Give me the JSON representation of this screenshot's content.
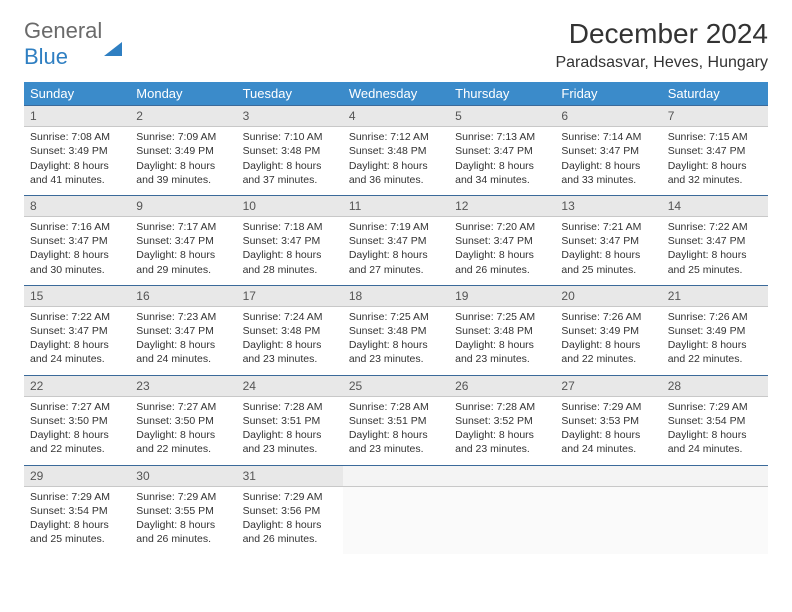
{
  "logo": {
    "text1": "General",
    "text2": "Blue"
  },
  "title": "December 2024",
  "location": "Paradsasvar, Heves, Hungary",
  "colors": {
    "header_bg": "#3b8bca",
    "header_text": "#ffffff",
    "daynum_bg": "#e8e8e8",
    "rule": "#3b6a9a",
    "logo_gray": "#6a6a6a",
    "logo_blue": "#2f7fc2"
  },
  "day_headers": [
    "Sunday",
    "Monday",
    "Tuesday",
    "Wednesday",
    "Thursday",
    "Friday",
    "Saturday"
  ],
  "weeks": [
    [
      {
        "n": "1",
        "sr": "7:08 AM",
        "ss": "3:49 PM",
        "dl": "8 hours and 41 minutes."
      },
      {
        "n": "2",
        "sr": "7:09 AM",
        "ss": "3:49 PM",
        "dl": "8 hours and 39 minutes."
      },
      {
        "n": "3",
        "sr": "7:10 AM",
        "ss": "3:48 PM",
        "dl": "8 hours and 37 minutes."
      },
      {
        "n": "4",
        "sr": "7:12 AM",
        "ss": "3:48 PM",
        "dl": "8 hours and 36 minutes."
      },
      {
        "n": "5",
        "sr": "7:13 AM",
        "ss": "3:47 PM",
        "dl": "8 hours and 34 minutes."
      },
      {
        "n": "6",
        "sr": "7:14 AM",
        "ss": "3:47 PM",
        "dl": "8 hours and 33 minutes."
      },
      {
        "n": "7",
        "sr": "7:15 AM",
        "ss": "3:47 PM",
        "dl": "8 hours and 32 minutes."
      }
    ],
    [
      {
        "n": "8",
        "sr": "7:16 AM",
        "ss": "3:47 PM",
        "dl": "8 hours and 30 minutes."
      },
      {
        "n": "9",
        "sr": "7:17 AM",
        "ss": "3:47 PM",
        "dl": "8 hours and 29 minutes."
      },
      {
        "n": "10",
        "sr": "7:18 AM",
        "ss": "3:47 PM",
        "dl": "8 hours and 28 minutes."
      },
      {
        "n": "11",
        "sr": "7:19 AM",
        "ss": "3:47 PM",
        "dl": "8 hours and 27 minutes."
      },
      {
        "n": "12",
        "sr": "7:20 AM",
        "ss": "3:47 PM",
        "dl": "8 hours and 26 minutes."
      },
      {
        "n": "13",
        "sr": "7:21 AM",
        "ss": "3:47 PM",
        "dl": "8 hours and 25 minutes."
      },
      {
        "n": "14",
        "sr": "7:22 AM",
        "ss": "3:47 PM",
        "dl": "8 hours and 25 minutes."
      }
    ],
    [
      {
        "n": "15",
        "sr": "7:22 AM",
        "ss": "3:47 PM",
        "dl": "8 hours and 24 minutes."
      },
      {
        "n": "16",
        "sr": "7:23 AM",
        "ss": "3:47 PM",
        "dl": "8 hours and 24 minutes."
      },
      {
        "n": "17",
        "sr": "7:24 AM",
        "ss": "3:48 PM",
        "dl": "8 hours and 23 minutes."
      },
      {
        "n": "18",
        "sr": "7:25 AM",
        "ss": "3:48 PM",
        "dl": "8 hours and 23 minutes."
      },
      {
        "n": "19",
        "sr": "7:25 AM",
        "ss": "3:48 PM",
        "dl": "8 hours and 23 minutes."
      },
      {
        "n": "20",
        "sr": "7:26 AM",
        "ss": "3:49 PM",
        "dl": "8 hours and 22 minutes."
      },
      {
        "n": "21",
        "sr": "7:26 AM",
        "ss": "3:49 PM",
        "dl": "8 hours and 22 minutes."
      }
    ],
    [
      {
        "n": "22",
        "sr": "7:27 AM",
        "ss": "3:50 PM",
        "dl": "8 hours and 22 minutes."
      },
      {
        "n": "23",
        "sr": "7:27 AM",
        "ss": "3:50 PM",
        "dl": "8 hours and 22 minutes."
      },
      {
        "n": "24",
        "sr": "7:28 AM",
        "ss": "3:51 PM",
        "dl": "8 hours and 23 minutes."
      },
      {
        "n": "25",
        "sr": "7:28 AM",
        "ss": "3:51 PM",
        "dl": "8 hours and 23 minutes."
      },
      {
        "n": "26",
        "sr": "7:28 AM",
        "ss": "3:52 PM",
        "dl": "8 hours and 23 minutes."
      },
      {
        "n": "27",
        "sr": "7:29 AM",
        "ss": "3:53 PM",
        "dl": "8 hours and 24 minutes."
      },
      {
        "n": "28",
        "sr": "7:29 AM",
        "ss": "3:54 PM",
        "dl": "8 hours and 24 minutes."
      }
    ],
    [
      {
        "n": "29",
        "sr": "7:29 AM",
        "ss": "3:54 PM",
        "dl": "8 hours and 25 minutes."
      },
      {
        "n": "30",
        "sr": "7:29 AM",
        "ss": "3:55 PM",
        "dl": "8 hours and 26 minutes."
      },
      {
        "n": "31",
        "sr": "7:29 AM",
        "ss": "3:56 PM",
        "dl": "8 hours and 26 minutes."
      },
      null,
      null,
      null,
      null
    ]
  ],
  "labels": {
    "sunrise": "Sunrise: ",
    "sunset": "Sunset: ",
    "daylight": "Daylight: "
  }
}
